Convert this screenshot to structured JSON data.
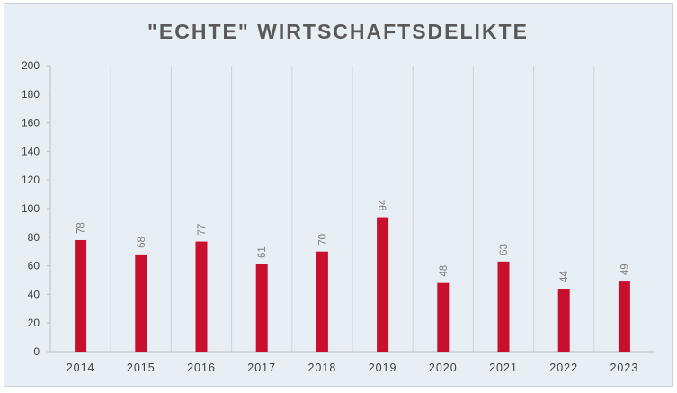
{
  "chart_data": {
    "type": "bar",
    "title": "\"ECHTE\" WIRTSCHAFTSDELIKTE",
    "categories": [
      "2014",
      "2015",
      "2016",
      "2017",
      "2018",
      "2019",
      "2020",
      "2021",
      "2022",
      "2023"
    ],
    "values": [
      78,
      68,
      77,
      61,
      70,
      94,
      48,
      63,
      44,
      49
    ],
    "ylim": [
      0,
      200
    ],
    "yticks": [
      0,
      20,
      40,
      60,
      80,
      100,
      120,
      140,
      160,
      180,
      200
    ],
    "xlabel": "",
    "ylabel": "",
    "bar_color": "#c8102e",
    "grid": "vertical",
    "legend": "none",
    "data_labels": "rotated-above"
  }
}
